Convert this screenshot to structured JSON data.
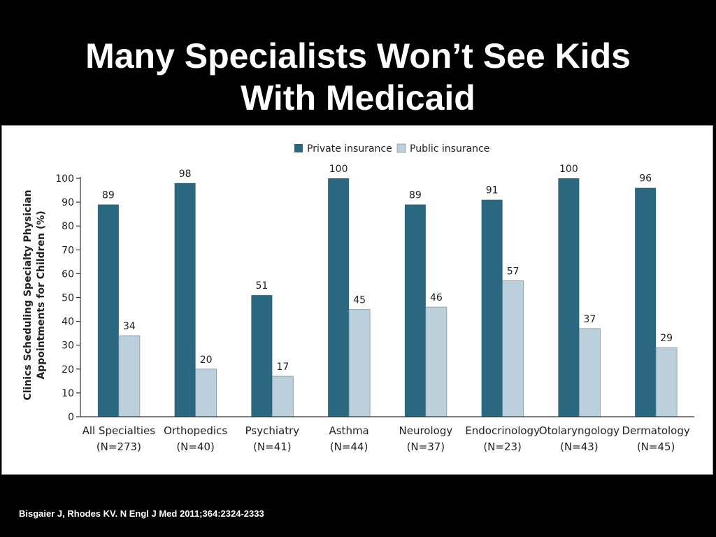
{
  "slide": {
    "title_line1": "Many Specialists Won’t See Kids",
    "title_line2": "With Medicaid",
    "citation": "Bisgaier J, Rhodes KV. N Engl J Med 2011;364:2324-2333"
  },
  "colors": {
    "private": "#2a687f",
    "public": "#bcd0dc"
  },
  "chart_data": {
    "type": "bar",
    "ylabel_line1": "Clinics Scheduling Specialty Physician",
    "ylabel_line2": "Appointments for Children (%)",
    "ylim": [
      0,
      100
    ],
    "yticks": [
      "0",
      "10",
      "20",
      "30",
      "40",
      "50",
      "60",
      "70",
      "80",
      "90",
      "100"
    ],
    "legend_position": "top",
    "grid": false,
    "categories": [
      {
        "name": "All Specialties",
        "n": "(N=273)"
      },
      {
        "name": "Orthopedics",
        "n": "(N=40)"
      },
      {
        "name": "Psychiatry",
        "n": "(N=41)"
      },
      {
        "name": "Asthma",
        "n": "(N=44)"
      },
      {
        "name": "Neurology",
        "n": "(N=37)"
      },
      {
        "name": "Endocrinology",
        "n": "(N=23)"
      },
      {
        "name": "Otolaryngology",
        "n": "(N=43)"
      },
      {
        "name": "Dermatology",
        "n": "(N=45)"
      }
    ],
    "series": [
      {
        "name": "Private insurance",
        "values": [
          89,
          98,
          51,
          100,
          89,
          91,
          100,
          96
        ]
      },
      {
        "name": "Public insurance",
        "values": [
          34,
          20,
          17,
          45,
          46,
          57,
          37,
          29
        ]
      }
    ]
  }
}
